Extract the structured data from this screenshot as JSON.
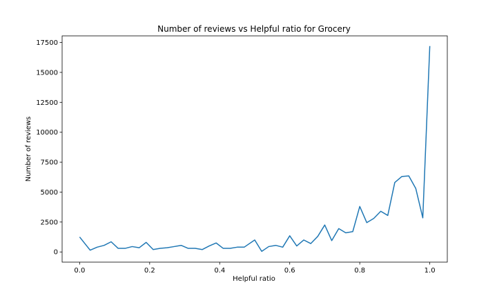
{
  "chart_data": {
    "type": "line",
    "title": "Number of reviews vs Helpful ratio for Grocery",
    "xlabel": "Helpful ratio",
    "ylabel": "Number of reviews",
    "xlim": [
      -0.05,
      1.05
    ],
    "ylim": [
      -850,
      18050
    ],
    "xticks": [
      0.0,
      0.2,
      0.4,
      0.6,
      0.8,
      1.0
    ],
    "xtick_labels": [
      "0.0",
      "0.2",
      "0.4",
      "0.6",
      "0.8",
      "1.0"
    ],
    "yticks": [
      0,
      2500,
      5000,
      7500,
      10000,
      12500,
      15000,
      17500
    ],
    "ytick_labels": [
      "0",
      "2500",
      "5000",
      "7500",
      "10000",
      "12500",
      "15000",
      "17500"
    ],
    "grid": false,
    "line_color": "#1f77b4",
    "series": [
      {
        "x": [
          0.0,
          0.03,
          0.05,
          0.07,
          0.09,
          0.11,
          0.13,
          0.15,
          0.17,
          0.19,
          0.21,
          0.23,
          0.25,
          0.27,
          0.29,
          0.31,
          0.33,
          0.35,
          0.37,
          0.39,
          0.41,
          0.43,
          0.45,
          0.47,
          0.5,
          0.52,
          0.54,
          0.56,
          0.58,
          0.6,
          0.62,
          0.64,
          0.66,
          0.68,
          0.7,
          0.72,
          0.74,
          0.76,
          0.78,
          0.8,
          0.82,
          0.84,
          0.86,
          0.88,
          0.9,
          0.92,
          0.94,
          0.96,
          0.98,
          1.0
        ],
        "y": [
          1250,
          150,
          400,
          550,
          850,
          300,
          300,
          450,
          350,
          800,
          200,
          300,
          350,
          450,
          550,
          300,
          300,
          200,
          500,
          750,
          300,
          300,
          400,
          400,
          1000,
          50,
          450,
          550,
          400,
          1350,
          500,
          1000,
          700,
          1300,
          2250,
          950,
          1950,
          1600,
          1700,
          3800,
          2450,
          2800,
          3400,
          3050,
          5800,
          6300,
          6350,
          5300,
          2850,
          17200
        ]
      }
    ]
  }
}
